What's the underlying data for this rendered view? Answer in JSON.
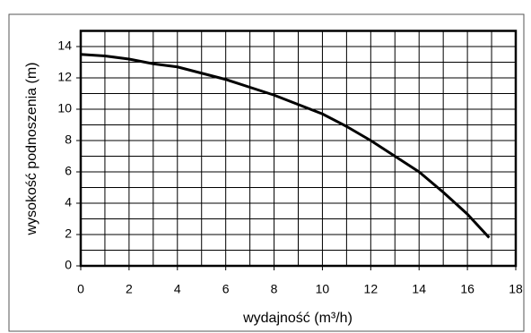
{
  "chart_data": {
    "type": "line",
    "x_label": "wydajność (m³/h)",
    "y_label": "wysokość podnoszenia (m)",
    "x": [
      0,
      1,
      2,
      3,
      4,
      5,
      6,
      7,
      8,
      9,
      10,
      11,
      12,
      13,
      14,
      15,
      16,
      16.9
    ],
    "series": [
      {
        "color": "#000000",
        "values": [
          13.5,
          13.4,
          13.2,
          12.9,
          12.7,
          12.3,
          11.9,
          11.4,
          10.9,
          10.3,
          9.7,
          8.9,
          8.0,
          7.0,
          6.0,
          4.7,
          3.3,
          1.8
        ]
      }
    ],
    "xlim": [
      0,
      18
    ],
    "xticks": [
      0,
      2,
      4,
      6,
      8,
      10,
      12,
      14,
      16,
      18
    ],
    "ylim": [
      0,
      15
    ],
    "yticks": [
      0,
      2,
      4,
      6,
      8,
      10,
      12,
      14
    ],
    "xgrid": [
      1,
      2,
      3,
      4,
      5,
      6,
      7,
      8,
      9,
      10,
      11,
      12,
      13,
      14,
      15,
      16,
      17
    ],
    "ygrid": [
      1,
      2,
      3,
      4,
      5,
      6,
      7,
      8,
      9,
      10,
      11,
      12,
      13,
      14
    ],
    "grid": true
  }
}
